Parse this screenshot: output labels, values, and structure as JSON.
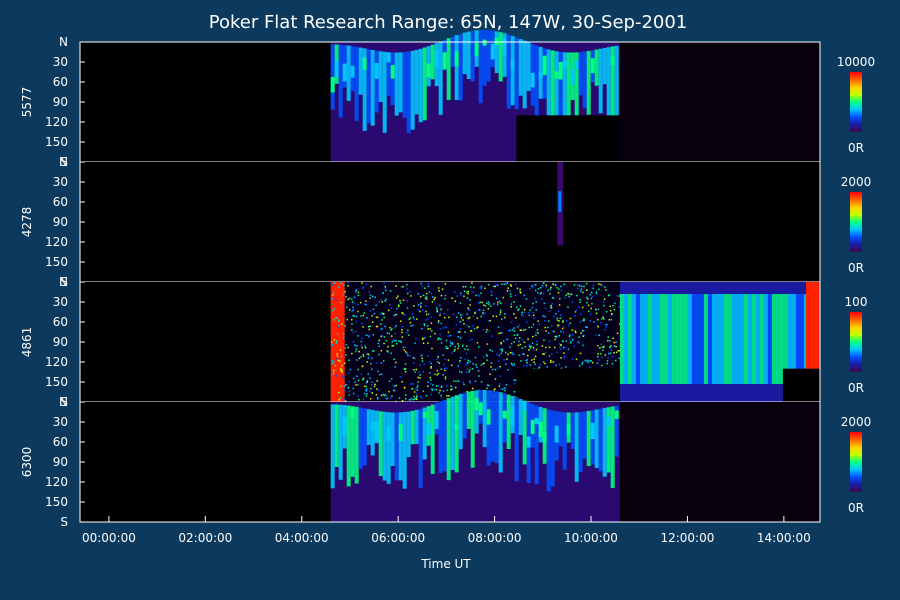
{
  "chart_data": {
    "type": "heatmap",
    "title": "Poker Flat Research Range: 65N, 147W, 30-Sep-2001",
    "xlabel": "Time UT",
    "x_tick_labels": [
      "00:00:00",
      "02:00:00",
      "04:00:00",
      "06:00:00",
      "08:00:00",
      "10:00:00",
      "12:00:00",
      "14:00:00"
    ],
    "x_tick_hours": [
      0,
      2,
      4,
      6,
      8,
      10,
      12,
      14
    ],
    "xlim_hours": [
      -0.6,
      14.75
    ],
    "y_tick_labels": [
      "N",
      "30",
      "60",
      "90",
      "120",
      "150",
      "S"
    ],
    "y_tick_values": [
      0,
      30,
      60,
      90,
      120,
      150,
      180
    ],
    "ylim": [
      0,
      180
    ],
    "panels": [
      {
        "channel": "5577",
        "colorbar_max_label": "10000",
        "colorbar_min_label": "0R",
        "data_segments": [
          {
            "start_hour": 4.6,
            "end_hour": 10.6,
            "ylim": [
              0,
              180
            ],
            "intensity": "medium",
            "pattern": "arcs"
          },
          {
            "start_hour": 8.45,
            "end_hour": 10.6,
            "ylim": [
              110,
              180
            ],
            "intensity": "none",
            "pattern": "blank"
          },
          {
            "start_hour": 10.6,
            "end_hour": 14.75,
            "ylim": [
              0,
              180
            ],
            "intensity": "very-low",
            "pattern": "dark"
          }
        ]
      },
      {
        "channel": "4278",
        "colorbar_max_label": "2000",
        "colorbar_min_label": "0R",
        "data_segments": [
          {
            "start_hour": 9.3,
            "end_hour": 9.38,
            "ylim": [
              0,
              125
            ],
            "intensity": "medium",
            "pattern": "strip"
          }
        ]
      },
      {
        "channel": "4861",
        "colorbar_max_label": "100",
        "colorbar_min_label": "0R",
        "data_segments": [
          {
            "start_hour": 4.6,
            "end_hour": 10.6,
            "ylim": [
              0,
              180
            ],
            "intensity": "noise",
            "pattern": "speckle"
          },
          {
            "start_hour": 8.45,
            "end_hour": 10.6,
            "ylim": [
              130,
              180
            ],
            "intensity": "none",
            "pattern": "blank"
          },
          {
            "start_hour": 10.6,
            "end_hour": 14.75,
            "ylim": [
              0,
              180
            ],
            "intensity": "medium",
            "pattern": "columns"
          },
          {
            "start_hour": 13.98,
            "end_hour": 14.75,
            "ylim": [
              130,
              180
            ],
            "intensity": "none",
            "pattern": "blank"
          }
        ]
      },
      {
        "channel": "6300",
        "colorbar_max_label": "2000",
        "colorbar_min_label": "0R",
        "data_segments": [
          {
            "start_hour": 4.6,
            "end_hour": 10.6,
            "ylim": [
              0,
              180
            ],
            "intensity": "medium",
            "pattern": "arcs"
          },
          {
            "start_hour": 10.6,
            "end_hour": 14.75,
            "ylim": [
              0,
              180
            ],
            "intensity": "very-low",
            "pattern": "dark"
          }
        ]
      }
    ],
    "colormap": [
      "#3a0a4a",
      "#1a1aa0",
      "#0050ff",
      "#00c8ff",
      "#00ff80",
      "#c8ff00",
      "#ffd000",
      "#ff6000",
      "#ff0000"
    ],
    "background": "#0b3a5e",
    "plot_background": "#000000",
    "grid": false,
    "legend": "colorbar-right"
  }
}
